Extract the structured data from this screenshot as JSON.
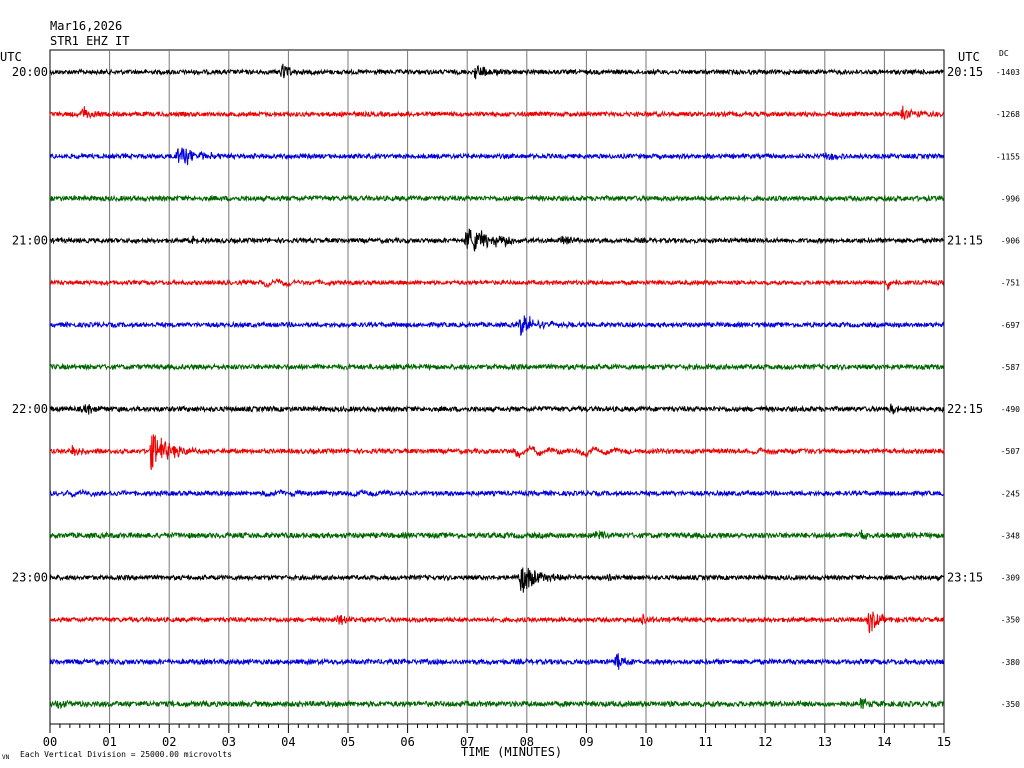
{
  "header": {
    "date": "Mar16,2026",
    "station": "STR1 EHZ IT",
    "utc_left": "UTC",
    "utc_right": "UTC",
    "dc_label": "DC"
  },
  "footer": {
    "xlabel": "TIME (MINUTES)",
    "footnote": "Each Vertical Division = 25000.00 microvolts",
    "logo": "VN"
  },
  "chart_data": {
    "type": "line",
    "title": "",
    "xlabel": "TIME (MINUTES)",
    "ylabel": "",
    "xlim": [
      0,
      15
    ],
    "x_ticks": [
      "00",
      "01",
      "02",
      "03",
      "04",
      "05",
      "06",
      "07",
      "08",
      "09",
      "10",
      "11",
      "12",
      "13",
      "14",
      "15"
    ],
    "grid": true,
    "colors": [
      "#000000",
      "#ee0000",
      "#0000dd",
      "#006600"
    ],
    "left_time_labels": [
      "20:00",
      "",
      "",
      "",
      "21:00",
      "",
      "",
      "",
      "22:00",
      "",
      "",
      "",
      "23:00",
      "",
      "",
      ""
    ],
    "right_time_labels": [
      "20:15",
      "",
      "",
      "",
      "21:15",
      "",
      "",
      "",
      "22:15",
      "",
      "",
      "",
      "23:15",
      "",
      "",
      ""
    ],
    "dc_values": [
      "-1403",
      "-1268",
      "-1155",
      "-996",
      "-906",
      "-751",
      "-697",
      "-587",
      "-490",
      "-507",
      "-245",
      "-348",
      "-309",
      "-350",
      "-380",
      "-350"
    ],
    "traces": [
      {
        "noise": 2.2,
        "events": [
          {
            "t": 3.9,
            "amp": 9,
            "dur": 0.15
          },
          {
            "t": 7.15,
            "amp": 8,
            "dur": 0.25
          }
        ]
      },
      {
        "noise": 2.2,
        "events": [
          {
            "t": 0.55,
            "amp": 8,
            "dur": 0.12
          },
          {
            "t": 14.3,
            "amp": 12,
            "dur": 0.15
          }
        ]
      },
      {
        "noise": 2.2,
        "events": [
          {
            "t": 2.15,
            "amp": 11,
            "dur": 0.35
          },
          {
            "t": 13.0,
            "amp": 4,
            "dur": 0.2
          }
        ]
      },
      {
        "noise": 2.4,
        "events": []
      },
      {
        "noise": 2.2,
        "events": [
          {
            "t": 2.4,
            "amp": 6,
            "dur": 0.12
          },
          {
            "t": 7.0,
            "amp": 14,
            "dur": 0.5
          },
          {
            "t": 8.6,
            "amp": 6,
            "dur": 0.15
          }
        ]
      },
      {
        "noise": 2.0,
        "events": [
          {
            "t": 3.55,
            "amp": 5,
            "dur": 0.6,
            "slow": true
          },
          {
            "t": 14.05,
            "amp": 7,
            "dur": 0.12
          }
        ]
      },
      {
        "noise": 2.2,
        "events": [
          {
            "t": 7.9,
            "amp": 11,
            "dur": 0.3
          }
        ]
      },
      {
        "noise": 2.4,
        "events": []
      },
      {
        "noise": 2.4,
        "events": [
          {
            "t": 0.6,
            "amp": 5,
            "dur": 0.2
          },
          {
            "t": 14.1,
            "amp": 6,
            "dur": 0.25
          }
        ]
      },
      {
        "noise": 2.2,
        "events": [
          {
            "t": 0.35,
            "amp": 7,
            "dur": 0.2
          },
          {
            "t": 1.7,
            "amp": 20,
            "dur": 0.3
          },
          {
            "t": 7.8,
            "amp": 8,
            "dur": 0.6,
            "slow": true
          },
          {
            "t": 8.9,
            "amp": 6,
            "dur": 0.5,
            "slow": true
          },
          {
            "t": 11.7,
            "amp": 4,
            "dur": 0.6,
            "slow": true
          }
        ]
      },
      {
        "noise": 2.2,
        "events": [
          {
            "t": 0.3,
            "amp": 4,
            "dur": 0.6,
            "slow": true
          },
          {
            "t": 3.6,
            "amp": 4,
            "dur": 0.6,
            "slow": true
          },
          {
            "t": 5.0,
            "amp": 3,
            "dur": 0.5,
            "slow": true
          }
        ]
      },
      {
        "noise": 2.6,
        "events": [
          {
            "t": 9.15,
            "amp": 5,
            "dur": 0.12
          },
          {
            "t": 13.6,
            "amp": 5,
            "dur": 0.1
          }
        ]
      },
      {
        "noise": 2.2,
        "events": [
          {
            "t": 7.9,
            "amp": 16,
            "dur": 0.3
          },
          {
            "t": 9.35,
            "amp": 5,
            "dur": 0.12
          }
        ]
      },
      {
        "noise": 2.2,
        "events": [
          {
            "t": 4.85,
            "amp": 6,
            "dur": 0.12
          },
          {
            "t": 9.95,
            "amp": 6,
            "dur": 0.1
          },
          {
            "t": 13.75,
            "amp": 13,
            "dur": 0.15
          }
        ]
      },
      {
        "noise": 2.4,
        "events": [
          {
            "t": 9.5,
            "amp": 10,
            "dur": 0.15
          }
        ]
      },
      {
        "noise": 2.6,
        "events": [
          {
            "t": 0.1,
            "amp": 4,
            "dur": 0.2
          },
          {
            "t": 13.6,
            "amp": 5,
            "dur": 0.15
          }
        ]
      }
    ]
  }
}
